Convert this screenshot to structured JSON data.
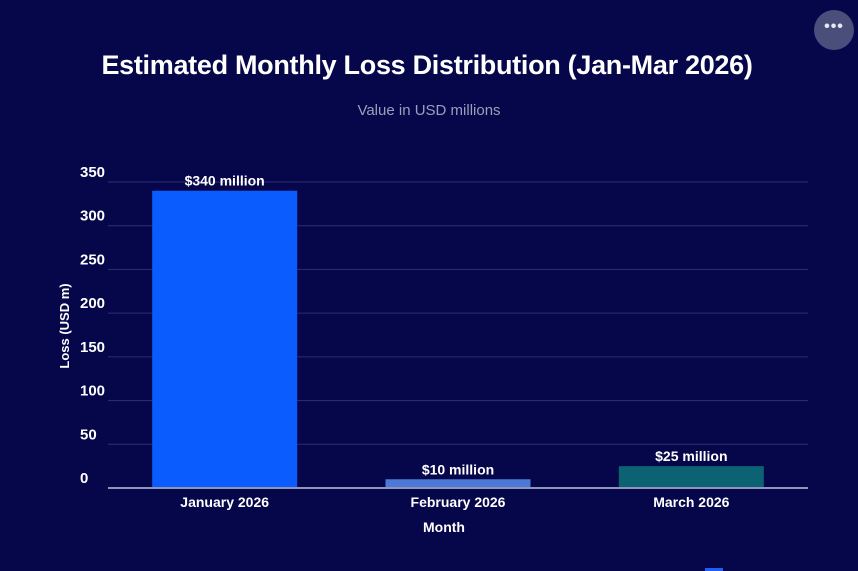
{
  "menu": {
    "icon": "more-horizontal-icon",
    "glyph": "•••"
  },
  "chart_data": {
    "type": "bar",
    "title": "Estimated Monthly Loss Distribution (Jan-Mar 2026)",
    "subtitle": "Value in USD millions",
    "xlabel": "Month",
    "ylabel": "Loss (USD m)",
    "categories": [
      "January 2026",
      "February 2026",
      "March 2026"
    ],
    "values": [
      340,
      10,
      25
    ],
    "data_labels": [
      "$340 million",
      "$10 million",
      "$25 million"
    ],
    "bar_colors": [
      "#0a5cff",
      "#4c79d6",
      "#0b6272"
    ],
    "ylim": [
      0,
      350
    ],
    "yticks": [
      0,
      50,
      100,
      150,
      200,
      250,
      300,
      350
    ],
    "grid": true,
    "grid_color": "#2a2f7a",
    "axis_color": "#8f94b8",
    "text_color": "#ffffff"
  }
}
